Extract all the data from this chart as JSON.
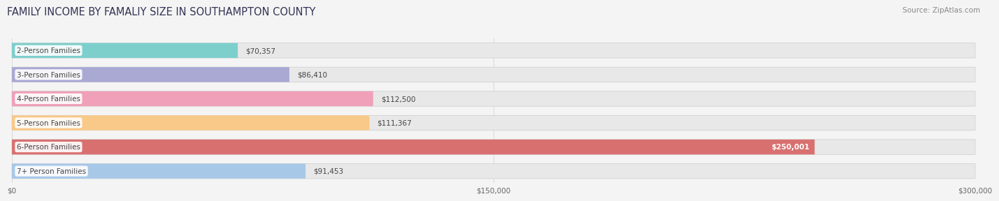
{
  "title": "FAMILY INCOME BY FAMALIY SIZE IN SOUTHAMPTON COUNTY",
  "source": "Source: ZipAtlas.com",
  "categories": [
    "2-Person Families",
    "3-Person Families",
    "4-Person Families",
    "5-Person Families",
    "6-Person Families",
    "7+ Person Families"
  ],
  "values": [
    70357,
    86410,
    112500,
    111367,
    250001,
    91453
  ],
  "bar_colors": [
    "#7dcfcc",
    "#a9a9d4",
    "#f0a0b8",
    "#f9c98a",
    "#d97070",
    "#a8c8e8"
  ],
  "value_labels": [
    "$70,357",
    "$86,410",
    "$112,500",
    "$111,367",
    "$250,001",
    "$91,453"
  ],
  "value_inside": [
    false,
    false,
    false,
    false,
    true,
    false
  ],
  "xlim": [
    0,
    300000
  ],
  "xtick_values": [
    0,
    150000,
    300000
  ],
  "xtick_labels": [
    "$0",
    "$150,000",
    "$300,000"
  ],
  "background_color": "#f4f4f4",
  "bar_bg_color": "#e8e8e8",
  "title_fontsize": 10.5,
  "label_fontsize": 7.5,
  "value_fontsize": 7.5,
  "source_fontsize": 7.5
}
